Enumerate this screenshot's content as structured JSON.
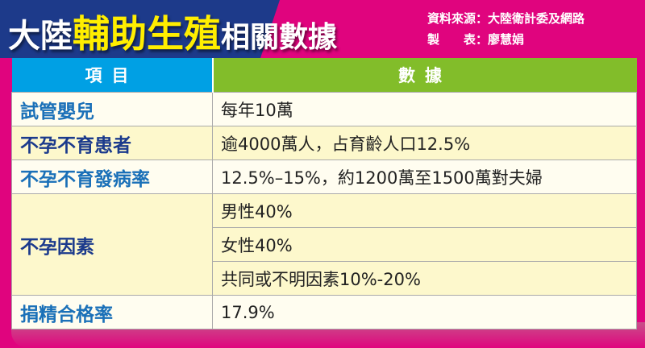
{
  "header": {
    "title_prefix": "大陸",
    "title_highlight": "輔助生殖",
    "title_suffix": "相關數據",
    "source_line": "資料來源：大陸衛計委及網路",
    "author_line": "製　　表：廖慧娟"
  },
  "table": {
    "columns": [
      "項目",
      "數據"
    ],
    "rows": [
      {
        "label": "試管嬰兒",
        "values": [
          "每年10萬"
        ]
      },
      {
        "label": "不孕不育患者",
        "values": [
          "逾4000萬人，占育齡人口12.5%"
        ]
      },
      {
        "label": "不孕不育發病率",
        "values": [
          "12.5%–15%，約1200萬至1500萬對夫婦"
        ]
      },
      {
        "label": "不孕因素",
        "values": [
          "男性40%",
          "女性40%",
          "共同或不明因素10%-20%"
        ]
      },
      {
        "label": "捐精合格率",
        "values": [
          "17.9%"
        ]
      }
    ]
  },
  "colors": {
    "navy": "#1d3a8a",
    "pink": "#e0047e",
    "header_blue": "#00a0e4",
    "header_green": "#82bd2a",
    "title_yellow": "#ffee00"
  }
}
